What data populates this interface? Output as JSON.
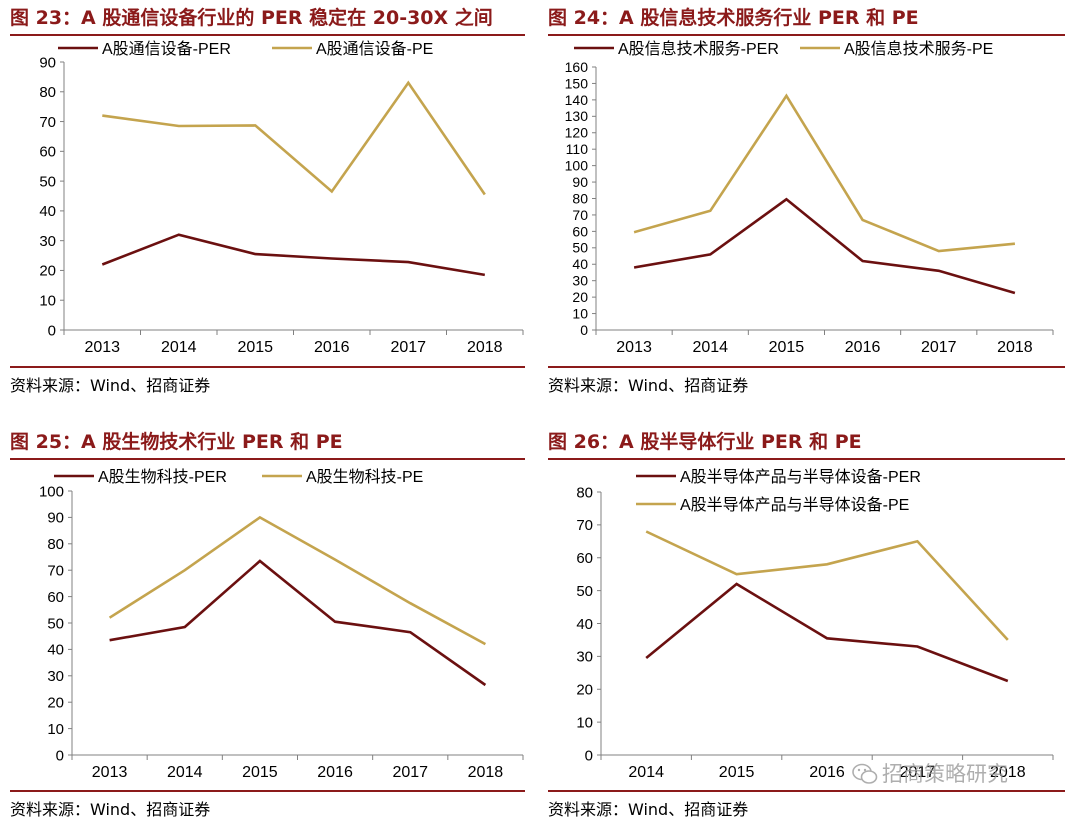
{
  "colors": {
    "per": "#6b1010",
    "pe": "#c4a44e",
    "accent": "#8b1a1a",
    "axis": "#808080"
  },
  "panels": [
    {
      "title": "图 23：A 股通信设备行业的 PER 稳定在 20-30X 之间",
      "source": "资料来源：Wind、招商证券"
    },
    {
      "title": "图 24：A 股信息技术服务行业 PER 和 PE",
      "source": "资料来源：Wind、招商证券"
    },
    {
      "title": "图 25：A 股生物技术行业 PER 和 PE",
      "source": "资料来源：Wind、招商证券"
    },
    {
      "title": "图 26：A 股半导体行业 PER 和 PE",
      "source": "资料来源：Wind、招商证券"
    }
  ],
  "watermark": {
    "text": "招商策略研究",
    "icon": "wechat-icon"
  },
  "chart_data": [
    {
      "type": "line",
      "categories": [
        "2013",
        "2014",
        "2015",
        "2016",
        "2017",
        "2018"
      ],
      "ylim": [
        0,
        90
      ],
      "yticks": [
        0,
        10,
        20,
        30,
        40,
        50,
        60,
        70,
        80,
        90
      ],
      "legend_layout": "row",
      "series": [
        {
          "name": "A股通信设备-PER",
          "values": [
            22,
            32,
            25.5,
            24,
            22.8,
            18.5
          ]
        },
        {
          "name": "A股通信设备-PE",
          "values": [
            72,
            68.5,
            68.7,
            46.5,
            83,
            45.5
          ]
        }
      ]
    },
    {
      "type": "line",
      "categories": [
        "2013",
        "2014",
        "2015",
        "2016",
        "2017",
        "2018"
      ],
      "ylim": [
        0,
        160
      ],
      "yticks": [
        0,
        10,
        20,
        30,
        40,
        50,
        60,
        70,
        80,
        90,
        100,
        110,
        120,
        130,
        140,
        150,
        160
      ],
      "legend_layout": "row",
      "series": [
        {
          "name": "A股信息技术服务-PER",
          "values": [
            38,
            46,
            79.5,
            42,
            36,
            22.5
          ]
        },
        {
          "name": "A股信息技术服务-PE",
          "values": [
            59.5,
            72.5,
            142.5,
            67,
            48,
            52.5
          ]
        }
      ]
    },
    {
      "type": "line",
      "categories": [
        "2013",
        "2014",
        "2015",
        "2016",
        "2017",
        "2018"
      ],
      "ylim": [
        0,
        100
      ],
      "yticks": [
        0,
        10,
        20,
        30,
        40,
        50,
        60,
        70,
        80,
        90,
        100
      ],
      "legend_layout": "row",
      "series": [
        {
          "name": "A股生物科技-PER",
          "values": [
            43.5,
            48.5,
            73.5,
            50.5,
            46.5,
            26.5
          ]
        },
        {
          "name": "A股生物科技-PE",
          "values": [
            52,
            70,
            90,
            74,
            57.5,
            42
          ]
        }
      ]
    },
    {
      "type": "line",
      "categories": [
        "2014",
        "2015",
        "2016",
        "2017",
        "2018"
      ],
      "ylim": [
        0,
        80
      ],
      "yticks": [
        0,
        10,
        20,
        30,
        40,
        50,
        60,
        70,
        80
      ],
      "legend_layout": "column",
      "series": [
        {
          "name": "A股半导体产品与半导体设备-PER",
          "values": [
            29.5,
            52,
            35.5,
            33,
            22.5
          ]
        },
        {
          "name": "A股半导体产品与半导体设备-PE",
          "values": [
            68,
            55,
            58,
            65,
            35
          ]
        }
      ]
    }
  ]
}
